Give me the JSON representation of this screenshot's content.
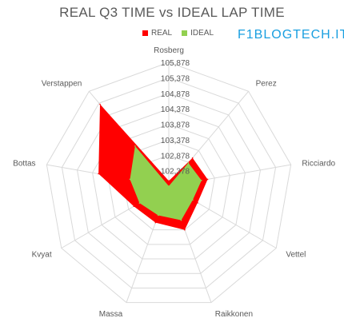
{
  "title": "REAL Q3 TIME vs IDEAL LAP TIME",
  "watermark": "F1BLOGTECH.IT",
  "colors": {
    "real": "#ff0000",
    "ideal": "#92d050",
    "grid": "#d9d9d9",
    "text": "#595959"
  },
  "chart_data": {
    "type": "radar",
    "title": "REAL Q3 TIME vs IDEAL LAP TIME",
    "categories": [
      "Rosberg",
      "Perez",
      "Ricciardo",
      "Vettel",
      "Raikkonen",
      "Massa",
      "Kvyat",
      "Bottas",
      "Verstappen"
    ],
    "r_ticks": [
      "102,378",
      "102,878",
      "103,378",
      "103,878",
      "104,378",
      "104,878",
      "105,378",
      "105,878"
    ],
    "r_range": [
      101.878,
      105.878
    ],
    "grid": true,
    "legend_position": "top",
    "series": [
      {
        "name": "REAL",
        "values": [
          102.05,
          103.07,
          103.15,
          102.95,
          103.38,
          103.13,
          103.18,
          104.18,
          105.33
        ]
      },
      {
        "name": "IDEAL",
        "values": [
          101.88,
          102.86,
          102.95,
          102.77,
          103.05,
          102.88,
          102.97,
          103.15,
          103.57
        ]
      }
    ]
  }
}
